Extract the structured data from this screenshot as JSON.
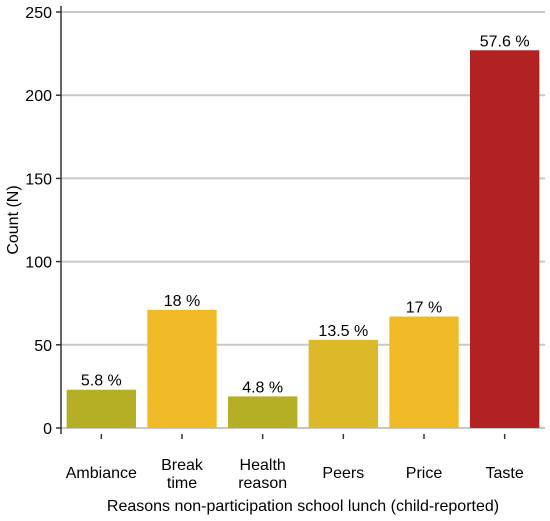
{
  "chart_data": {
    "type": "bar",
    "title": "",
    "xlabel": "Reasons non-participation school lunch (child-reported)",
    "ylabel": "Count (N)",
    "ylim": [
      0,
      250
    ],
    "yticks": [
      0,
      50,
      100,
      150,
      200,
      250
    ],
    "grid": "horizontal",
    "categories": [
      [
        "Ambiance"
      ],
      [
        "Break",
        "time"
      ],
      [
        "Health",
        "reason"
      ],
      [
        "Peers"
      ],
      [
        "Price"
      ],
      [
        "Taste"
      ]
    ],
    "values": [
      23,
      71,
      19,
      53,
      67,
      227
    ],
    "labels": [
      "5.8 %",
      "18 %",
      "4.8 %",
      "13.5 %",
      "17 %",
      "57.6 %"
    ],
    "colors": [
      "#B5AF25",
      "#F0BA26",
      "#B5AF25",
      "#DDB92A",
      "#F0BA26",
      "#B22223"
    ]
  }
}
